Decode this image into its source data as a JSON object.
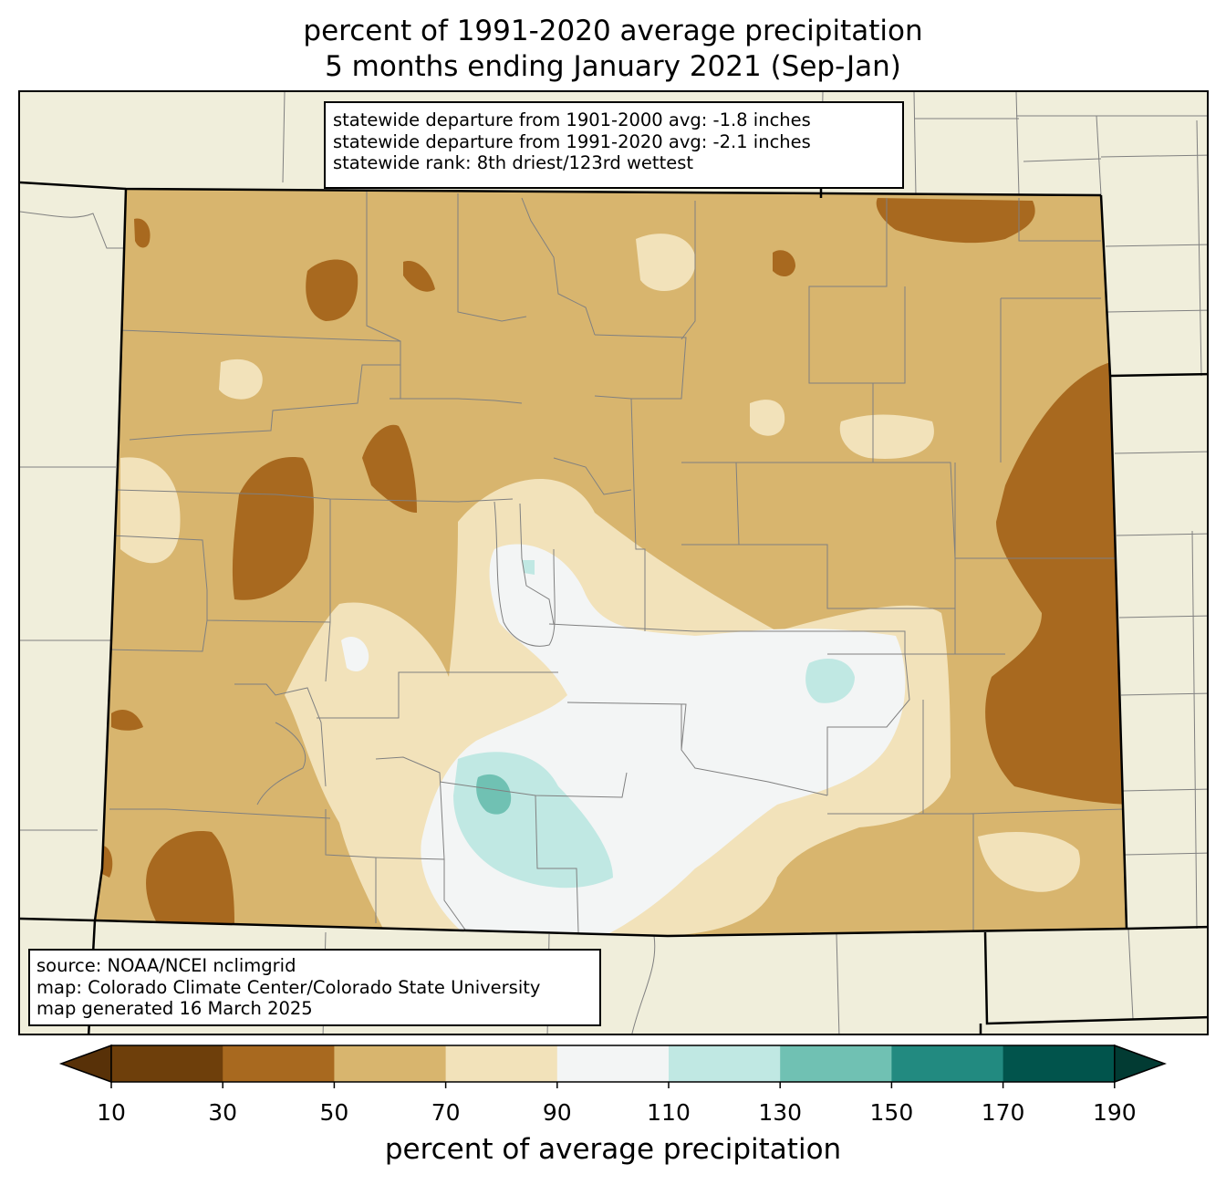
{
  "title": {
    "line1": "percent of 1991-2020 average precipitation",
    "line2": "5 months ending January 2021 (Sep-Jan)"
  },
  "stats_box": {
    "line1": "statewide departure from 1901-2000 avg: -1.8 inches",
    "line2": "statewide departure from 1991-2020 avg: -2.1 inches",
    "line3": "statewide rank: 8th driest/123rd wettest"
  },
  "source_box": {
    "line1": "source: NOAA/NCEI nclimgrid",
    "line2": "map: Colorado Climate Center/Colorado State University",
    "line3": "map generated 16 March 2025"
  },
  "colorbar": {
    "label": "percent of average precipitation",
    "ticks": [
      "10",
      "30",
      "50",
      "70",
      "90",
      "110",
      "130",
      "150",
      "170",
      "190"
    ],
    "colors": [
      "#6e3f0b",
      "#a8691f",
      "#d8b56e",
      "#f2e2ba",
      "#f3f5f5",
      "#c0e8e3",
      "#70c1b3",
      "#228a80",
      "#01544c"
    ],
    "under_color": "#583108",
    "over_color": "#023b33"
  },
  "map_colors": {
    "background_land": "#f0eedb",
    "county_lines": "#808080",
    "state_lines": "#000000"
  }
}
